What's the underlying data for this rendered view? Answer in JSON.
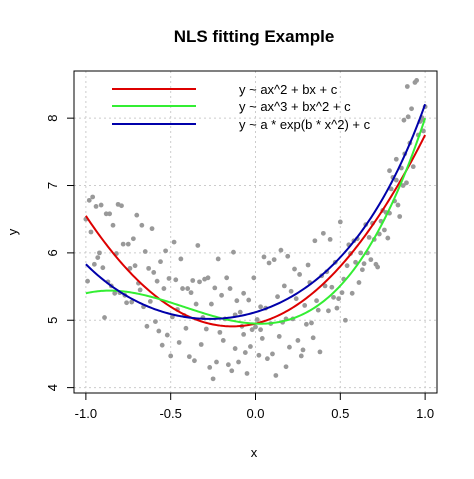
{
  "chart_data": {
    "type": "scatter",
    "title": "NLS fitting Example",
    "xlabel": "x",
    "ylabel": "y",
    "xlim": [
      -1.07,
      1.07
    ],
    "ylim": [
      3.92,
      8.7
    ],
    "x_ticks": [
      -1.0,
      -0.5,
      0.0,
      0.5,
      1.0
    ],
    "x_tick_labels": [
      "-1.0",
      "-0.5",
      "0.0",
      "0.5",
      "1.0"
    ],
    "y_ticks": [
      4,
      5,
      6,
      7,
      8
    ],
    "y_tick_labels": [
      "4",
      "5",
      "6",
      "7",
      "8"
    ],
    "grid": true,
    "legend_position": "top",
    "points_color": "#999999",
    "points": [
      [
        -1.0,
        6.5
      ],
      [
        -0.99,
        5.58
      ],
      [
        -0.98,
        6.78
      ],
      [
        -0.97,
        6.31
      ],
      [
        -0.96,
        6.83
      ],
      [
        -0.95,
        5.83
      ],
      [
        -0.94,
        6.69
      ],
      [
        -0.93,
        5.93
      ],
      [
        -0.92,
        6.0
      ],
      [
        -0.91,
        6.71
      ],
      [
        -0.9,
        5.78
      ],
      [
        -0.89,
        5.04
      ],
      [
        -0.88,
        6.58
      ],
      [
        -0.87,
        5.57
      ],
      [
        -0.86,
        6.58
      ],
      [
        -0.85,
        5.51
      ],
      [
        -0.84,
        6.41
      ],
      [
        -0.83,
        5.4
      ],
      [
        -0.82,
        5.99
      ],
      [
        -0.81,
        6.72
      ],
      [
        -0.8,
        5.41
      ],
      [
        -0.79,
        6.7
      ],
      [
        -0.78,
        6.13
      ],
      [
        -0.77,
        5.37
      ],
      [
        -0.76,
        5.26
      ],
      [
        -0.75,
        6.13
      ],
      [
        -0.74,
        5.77
      ],
      [
        -0.73,
        5.27
      ],
      [
        -0.72,
        6.21
      ],
      [
        -0.71,
        5.81
      ],
      [
        -0.7,
        6.56
      ],
      [
        -0.69,
        5.55
      ],
      [
        -0.68,
        5.45
      ],
      [
        -0.67,
        6.41
      ],
      [
        -0.66,
        5.2
      ],
      [
        -0.65,
        6.02
      ],
      [
        -0.64,
        4.91
      ],
      [
        -0.63,
        5.77
      ],
      [
        -0.62,
        5.28
      ],
      [
        -0.61,
        6.36
      ],
      [
        -0.6,
        5.71
      ],
      [
        -0.59,
        4.98
      ],
      [
        -0.58,
        5.58
      ],
      [
        -0.57,
        4.84
      ],
      [
        -0.56,
        5.87
      ],
      [
        -0.55,
        4.63
      ],
      [
        -0.54,
        5.47
      ],
      [
        -0.53,
        6.03
      ],
      [
        -0.52,
        4.78
      ],
      [
        -0.51,
        5.62
      ],
      [
        -0.5,
        4.47
      ],
      [
        -0.49,
        5.05
      ],
      [
        -0.48,
        6.16
      ],
      [
        -0.47,
        5.6
      ],
      [
        -0.46,
        5.16
      ],
      [
        -0.45,
        4.67
      ],
      [
        -0.44,
        5.91
      ],
      [
        -0.43,
        5.47
      ],
      [
        -0.42,
        5.07
      ],
      [
        -0.41,
        4.88
      ],
      [
        -0.4,
        5.47
      ],
      [
        -0.39,
        4.46
      ],
      [
        -0.38,
        5.41
      ],
      [
        -0.37,
        5.59
      ],
      [
        -0.36,
        4.4
      ],
      [
        -0.35,
        5.24
      ],
      [
        -0.34,
        6.11
      ],
      [
        -0.33,
        5.57
      ],
      [
        -0.32,
        4.64
      ],
      [
        -0.31,
        5.04
      ],
      [
        -0.3,
        5.61
      ],
      [
        -0.29,
        4.87
      ],
      [
        -0.28,
        5.63
      ],
      [
        -0.27,
        4.3
      ],
      [
        -0.26,
        5.24
      ],
      [
        -0.25,
        4.13
      ],
      [
        -0.24,
        5.48
      ],
      [
        -0.23,
        4.38
      ],
      [
        -0.22,
        5.91
      ],
      [
        -0.21,
        4.82
      ],
      [
        -0.2,
        5.37
      ],
      [
        -0.19,
        4.7
      ],
      [
        -0.18,
        5.02
      ],
      [
        -0.17,
        5.63
      ],
      [
        -0.16,
        4.34
      ],
      [
        -0.15,
        5.47
      ],
      [
        -0.14,
        4.25
      ],
      [
        -0.13,
        6.01
      ],
      [
        -0.12,
        4.58
      ],
      [
        -0.11,
        5.29
      ],
      [
        -0.1,
        4.38
      ],
      [
        -0.09,
        5.12
      ],
      [
        -0.08,
        4.91
      ],
      [
        -0.07,
        5.4
      ],
      [
        -0.06,
        4.52
      ],
      [
        -0.05,
        4.21
      ],
      [
        -0.04,
        5.3
      ],
      [
        -0.03,
        4.61
      ],
      [
        -0.02,
        4.86
      ],
      [
        -0.01,
        5.63
      ],
      [
        0.0,
        4.9
      ],
      [
        0.01,
        5.01
      ],
      [
        0.02,
        4.48
      ],
      [
        0.03,
        5.2
      ],
      [
        0.04,
        4.73
      ],
      [
        0.05,
        5.94
      ],
      [
        0.06,
        5.18
      ],
      [
        0.07,
        4.43
      ],
      [
        0.08,
        5.85
      ],
      [
        0.09,
        4.95
      ],
      [
        0.1,
        4.5
      ],
      [
        0.11,
        5.9
      ],
      [
        0.12,
        4.18
      ],
      [
        0.13,
        5.35
      ],
      [
        0.14,
        4.76
      ],
      [
        0.15,
        6.04
      ],
      [
        0.16,
        4.97
      ],
      [
        0.17,
        5.51
      ],
      [
        0.18,
        4.31
      ],
      [
        0.19,
        5.95
      ],
      [
        0.2,
        4.6
      ],
      [
        0.21,
        5.43
      ],
      [
        0.22,
        5.02
      ],
      [
        0.23,
        5.76
      ],
      [
        0.24,
        5.32
      ],
      [
        0.25,
        4.7
      ],
      [
        0.26,
        5.68
      ],
      [
        0.27,
        4.47
      ],
      [
        0.28,
        4.56
      ],
      [
        0.29,
        5.22
      ],
      [
        0.3,
        4.94
      ],
      [
        0.31,
        5.82
      ],
      [
        0.32,
        5.56
      ],
      [
        0.33,
        4.96
      ],
      [
        0.34,
        4.74
      ],
      [
        0.35,
        6.18
      ],
      [
        0.36,
        5.29
      ],
      [
        0.37,
        5.15
      ],
      [
        0.38,
        4.53
      ],
      [
        0.39,
        5.66
      ],
      [
        0.4,
        6.29
      ],
      [
        0.41,
        5.51
      ],
      [
        0.42,
        5.72
      ],
      [
        0.43,
        5.14
      ],
      [
        0.44,
        6.2
      ],
      [
        0.45,
        5.49
      ],
      [
        0.46,
        5.34
      ],
      [
        0.47,
        5.86
      ],
      [
        0.48,
        5.18
      ],
      [
        0.49,
        5.32
      ],
      [
        0.5,
        6.46
      ],
      [
        0.51,
        5.41
      ],
      [
        0.52,
        5.61
      ],
      [
        0.53,
        5.0
      ],
      [
        0.54,
        5.81
      ],
      [
        0.55,
        6.12
      ],
      [
        0.56,
        5.99
      ],
      [
        0.57,
        5.4
      ],
      [
        0.58,
        6.18
      ],
      [
        0.59,
        5.86
      ],
      [
        0.6,
        6.21
      ],
      [
        0.61,
        5.56
      ],
      [
        0.62,
        6.0
      ],
      [
        0.63,
        5.75
      ],
      [
        0.64,
        5.84
      ],
      [
        0.65,
        6.42
      ],
      [
        0.66,
        6.0
      ],
      [
        0.67,
        6.23
      ],
      [
        0.68,
        5.9
      ],
      [
        0.69,
        6.44
      ],
      [
        0.7,
        6.2
      ],
      [
        0.71,
        5.83
      ],
      [
        0.72,
        5.79
      ],
      [
        0.73,
        6.28
      ],
      [
        0.74,
        6.47
      ],
      [
        0.75,
        6.63
      ],
      [
        0.76,
        6.34
      ],
      [
        0.77,
        6.6
      ],
      [
        0.78,
        6.22
      ],
      [
        0.79,
        6.59
      ],
      [
        0.8,
        6.95
      ],
      [
        0.81,
        7.12
      ],
      [
        0.82,
        6.77
      ],
      [
        0.83,
        7.08
      ],
      [
        0.84,
        6.71
      ],
      [
        0.85,
        6.54
      ],
      [
        0.86,
        7.26
      ],
      [
        0.87,
        7.0
      ],
      [
        0.88,
        7.47
      ],
      [
        0.89,
        7.04
      ],
      [
        0.9,
        8.02
      ],
      [
        0.91,
        7.63
      ],
      [
        0.92,
        8.14
      ],
      [
        0.93,
        7.28
      ],
      [
        0.94,
        8.53
      ],
      [
        0.95,
        8.56
      ],
      [
        0.96,
        7.75
      ],
      [
        0.97,
        7.95
      ],
      [
        0.98,
        8.01
      ],
      [
        0.99,
        7.81
      ],
      [
        1.0,
        8.17
      ],
      [
        0.985,
        7.98
      ],
      [
        0.895,
        8.47
      ],
      [
        0.875,
        7.97
      ],
      [
        0.83,
        7.39
      ],
      [
        0.79,
        7.22
      ],
      [
        -0.12,
        5.08
      ],
      [
        -0.07,
        4.79
      ],
      [
        0.03,
        4.86
      ],
      [
        0.18,
        5.02
      ]
    ],
    "series": [
      {
        "name": "y ~ ax^2 + bx + c",
        "color": "#dd0000",
        "model": "quad",
        "params": [
          2.2,
          0.6,
          4.95
        ]
      },
      {
        "name": "y ~ ax^3 + bx^2 + c",
        "color": "#33ee33",
        "model": "cubic",
        "params": [
          1.4,
          1.75,
          -0.1,
          4.95
        ]
      },
      {
        "name": "y ~ a * exp(b * x^2) + c",
        "color": "#0000aa",
        "model": "expsq",
        "params": [
          3.02,
          0.4466,
          2.0,
          -0.27
        ]
      }
    ]
  }
}
